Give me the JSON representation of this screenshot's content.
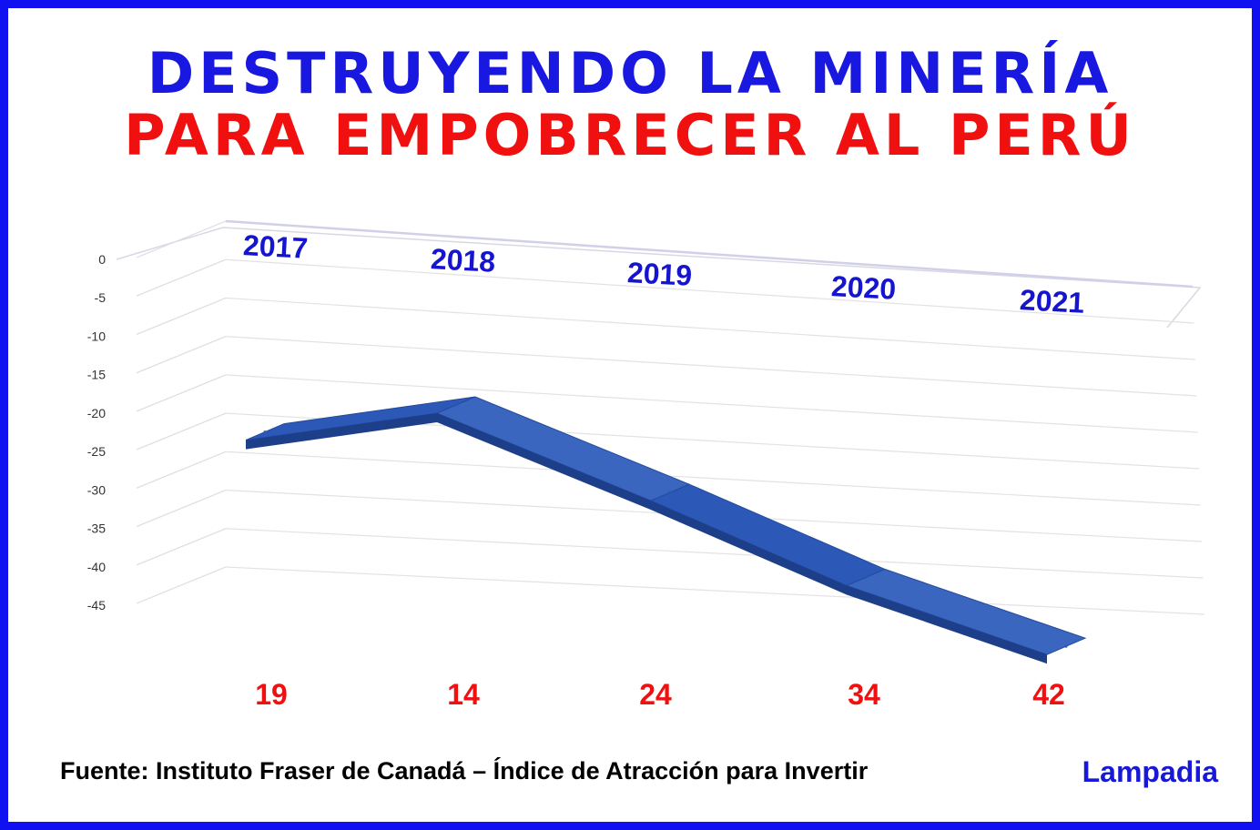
{
  "title": {
    "line1": "DESTRUYENDO LA MINERÍA",
    "line2": "PARA EMPOBRECER AL PERÚ"
  },
  "source": "Fuente: Instituto Fraser de Canadá – Índice de Atracción para Invertir",
  "brand": "Lampadia",
  "colors": {
    "border": "#1010f0",
    "title_blue": "#1818e0",
    "title_red": "#f01010",
    "ribbon": "#2a55b0"
  },
  "chart_data": {
    "type": "line",
    "style": "3d-ribbon",
    "categories": [
      "2017",
      "2018",
      "2019",
      "2020",
      "2021"
    ],
    "values": [
      -19,
      -14,
      -24,
      -34,
      -42
    ],
    "value_labels": [
      "19",
      "14",
      "24",
      "34",
      "42"
    ],
    "yticks": [
      "0",
      "-5",
      "-10",
      "-15",
      "-20",
      "-25",
      "-30",
      "-35",
      "-40",
      "-45"
    ],
    "ylim": [
      -45,
      0
    ],
    "grid": true
  }
}
